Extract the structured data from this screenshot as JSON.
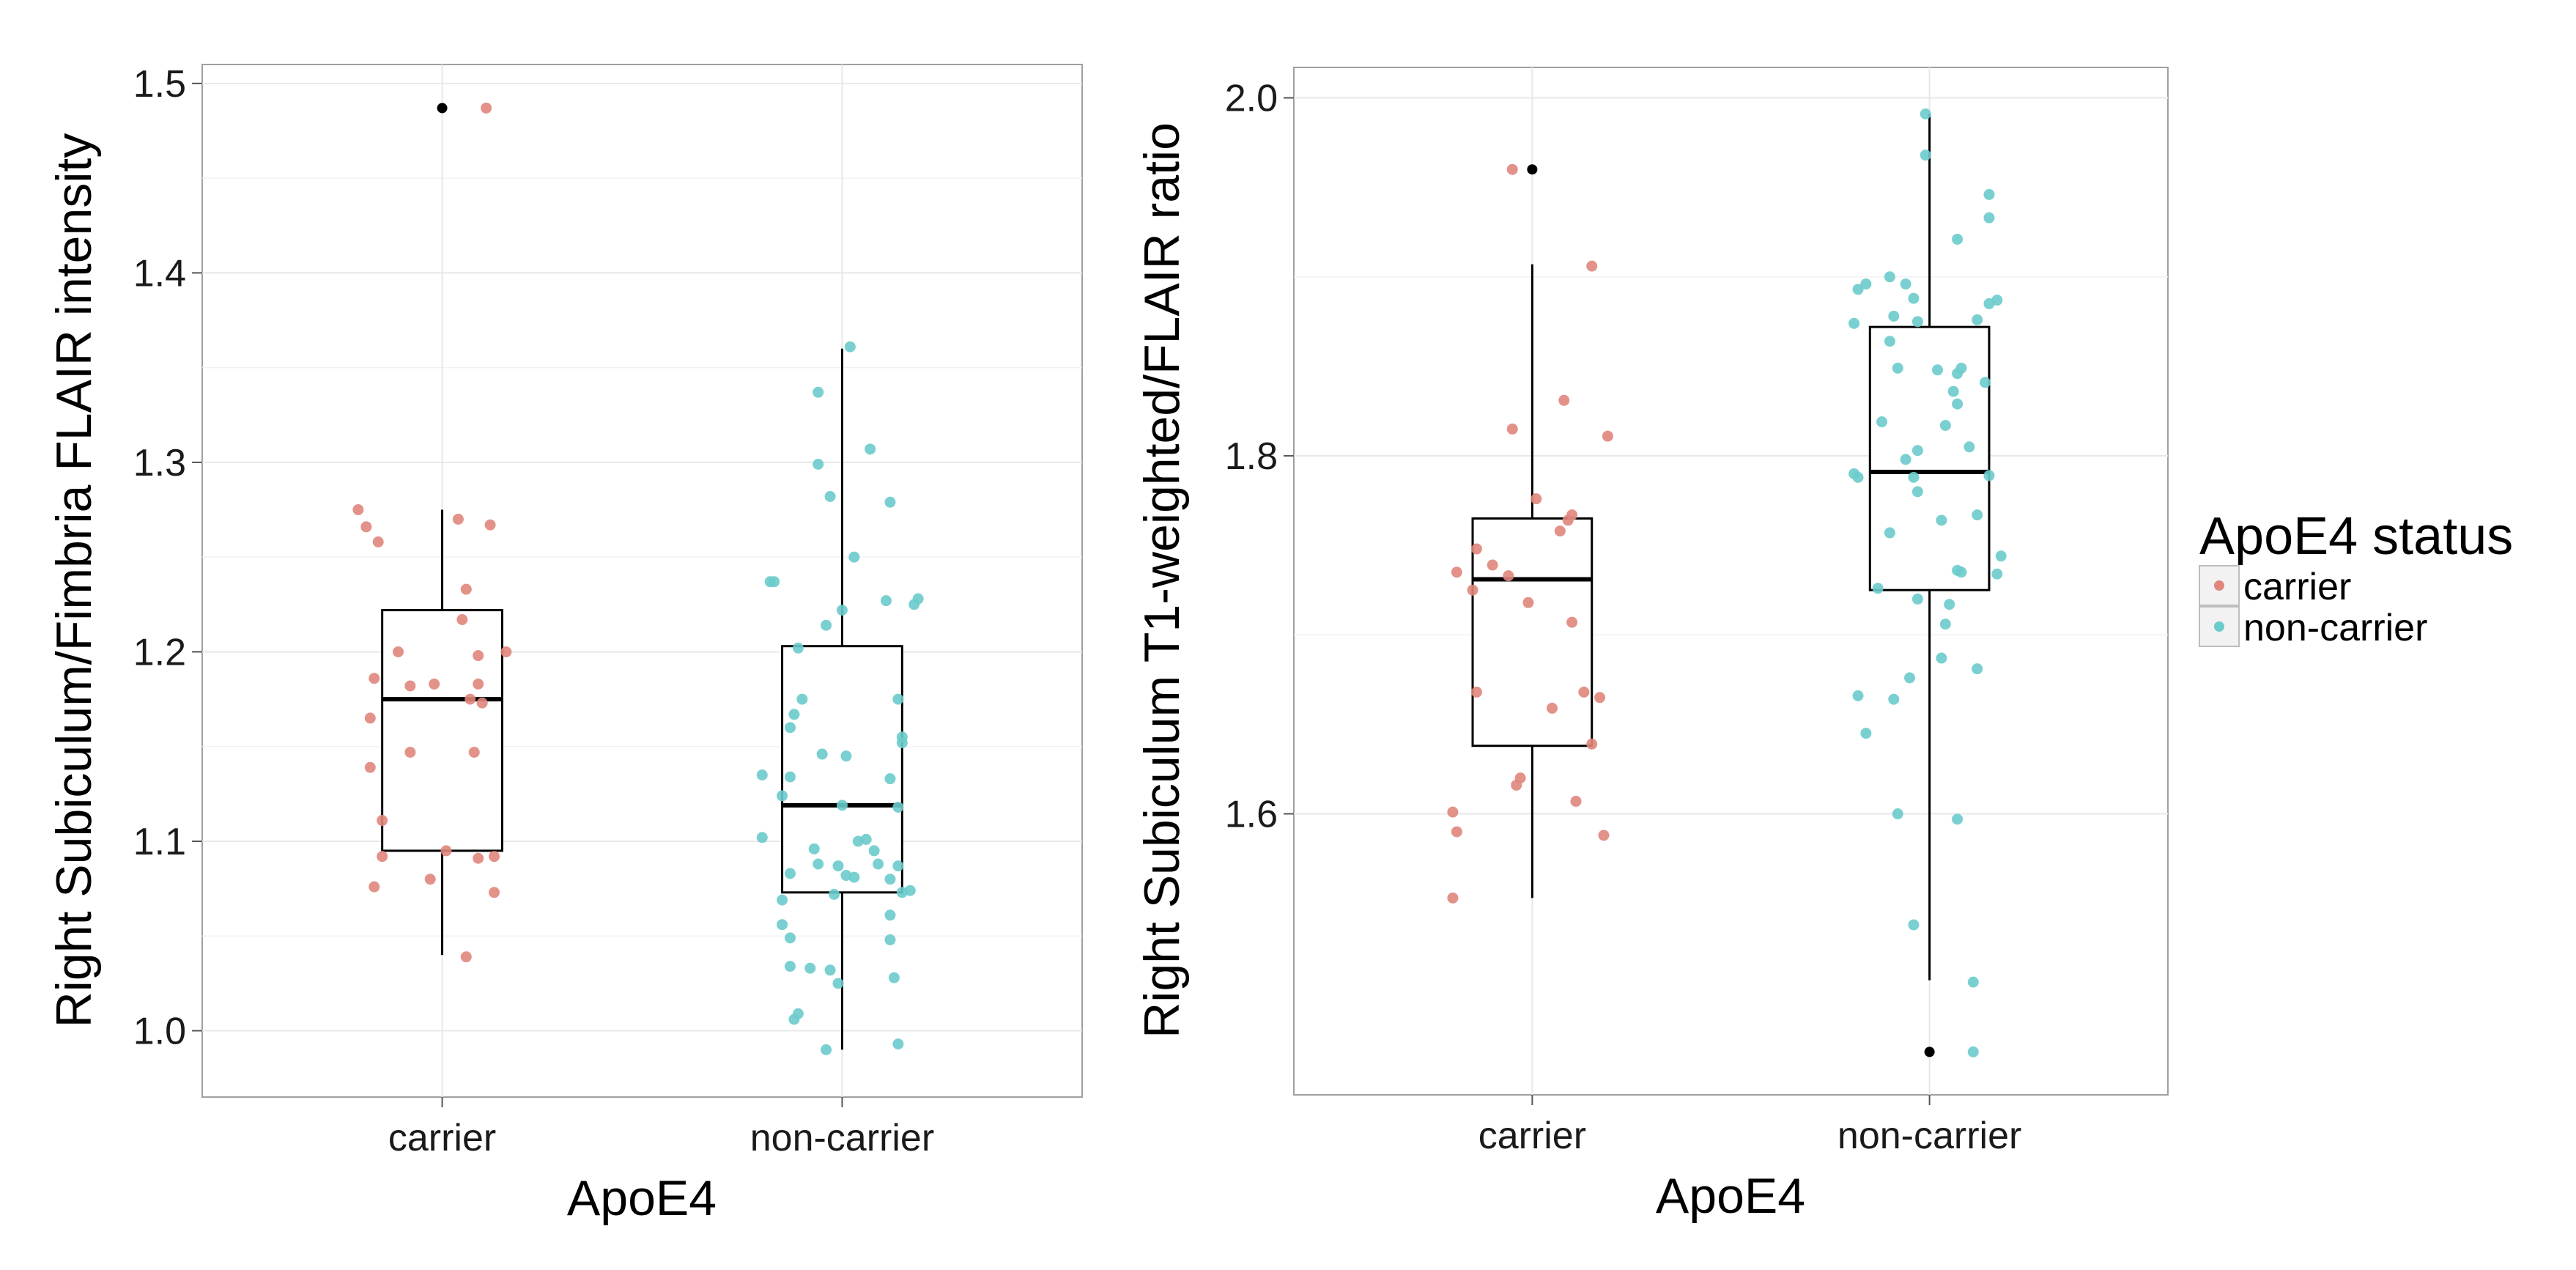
{
  "legend": {
    "title": "ApoE4 status",
    "items": [
      {
        "label": "carrier",
        "color": "#E0867C"
      },
      {
        "label": "non-carrier",
        "color": "#6CCBCB"
      }
    ]
  },
  "chart_data": [
    {
      "type": "box",
      "xlabel": "ApoE4",
      "ylabel": "Right Subiculum/Fimbria FLAIR intensity",
      "ylim": [
        0.965,
        1.51
      ],
      "yticks": [
        1.0,
        1.1,
        1.2,
        1.3,
        1.4,
        1.5
      ],
      "ytick_labels": [
        "1.0",
        "1.1",
        "1.2",
        "1.3",
        "1.4",
        "1.5"
      ],
      "categories": [
        "carrier",
        "non-carrier"
      ],
      "boxes": [
        {
          "category": "carrier",
          "whisker_low": 1.04,
          "q1": 1.095,
          "median": 1.175,
          "q3": 1.222,
          "whisker_high": 1.275,
          "outliers": [
            1.487
          ]
        },
        {
          "category": "non-carrier",
          "whisker_low": 0.99,
          "q1": 1.073,
          "median": 1.119,
          "q3": 1.203,
          "whisker_high": 1.36,
          "outliers": []
        }
      ],
      "points": [
        {
          "group": "carrier",
          "dx": -0.21,
          "y": 1.275
        },
        {
          "group": "carrier",
          "dx": -0.19,
          "y": 1.266
        },
        {
          "group": "carrier",
          "dx": -0.16,
          "y": 1.258
        },
        {
          "group": "carrier",
          "dx": 0.04,
          "y": 1.27
        },
        {
          "group": "carrier",
          "dx": 0.12,
          "y": 1.267
        },
        {
          "group": "carrier",
          "dx": 0.06,
          "y": 1.233
        },
        {
          "group": "carrier",
          "dx": 0.05,
          "y": 1.217
        },
        {
          "group": "carrier",
          "dx": -0.11,
          "y": 1.2
        },
        {
          "group": "carrier",
          "dx": 0.09,
          "y": 1.198
        },
        {
          "group": "carrier",
          "dx": 0.16,
          "y": 1.2
        },
        {
          "group": "carrier",
          "dx": -0.17,
          "y": 1.186
        },
        {
          "group": "carrier",
          "dx": -0.08,
          "y": 1.182
        },
        {
          "group": "carrier",
          "dx": -0.02,
          "y": 1.183
        },
        {
          "group": "carrier",
          "dx": 0.09,
          "y": 1.183
        },
        {
          "group": "carrier",
          "dx": 0.07,
          "y": 1.175
        },
        {
          "group": "carrier",
          "dx": 0.1,
          "y": 1.173
        },
        {
          "group": "carrier",
          "dx": -0.18,
          "y": 1.165
        },
        {
          "group": "carrier",
          "dx": -0.08,
          "y": 1.147
        },
        {
          "group": "carrier",
          "dx": 0.08,
          "y": 1.147
        },
        {
          "group": "carrier",
          "dx": -0.18,
          "y": 1.139
        },
        {
          "group": "carrier",
          "dx": -0.15,
          "y": 1.111
        },
        {
          "group": "carrier",
          "dx": -0.15,
          "y": 1.092
        },
        {
          "group": "carrier",
          "dx": 0.01,
          "y": 1.095
        },
        {
          "group": "carrier",
          "dx": 0.09,
          "y": 1.091
        },
        {
          "group": "carrier",
          "dx": 0.13,
          "y": 1.092
        },
        {
          "group": "carrier",
          "dx": -0.03,
          "y": 1.08
        },
        {
          "group": "carrier",
          "dx": -0.17,
          "y": 1.076
        },
        {
          "group": "carrier",
          "dx": 0.13,
          "y": 1.073
        },
        {
          "group": "carrier",
          "dx": 0.06,
          "y": 1.039
        },
        {
          "group": "carrier",
          "dx": 0.11,
          "y": 1.487
        },
        {
          "group": "non-carrier",
          "dx": 0.02,
          "y": 1.361
        },
        {
          "group": "non-carrier",
          "dx": -0.06,
          "y": 1.337
        },
        {
          "group": "non-carrier",
          "dx": 0.07,
          "y": 1.307
        },
        {
          "group": "non-carrier",
          "dx": -0.06,
          "y": 1.299
        },
        {
          "group": "non-carrier",
          "dx": -0.03,
          "y": 1.282
        },
        {
          "group": "non-carrier",
          "dx": 0.12,
          "y": 1.279
        },
        {
          "group": "non-carrier",
          "dx": 0.03,
          "y": 1.25
        },
        {
          "group": "non-carrier",
          "dx": -0.18,
          "y": 1.237
        },
        {
          "group": "non-carrier",
          "dx": -0.17,
          "y": 1.237
        },
        {
          "group": "non-carrier",
          "dx": 0.11,
          "y": 1.227
        },
        {
          "group": "non-carrier",
          "dx": 0.19,
          "y": 1.228
        },
        {
          "group": "non-carrier",
          "dx": 0.18,
          "y": 1.225
        },
        {
          "group": "non-carrier",
          "dx": 0.0,
          "y": 1.222
        },
        {
          "group": "non-carrier",
          "dx": -0.04,
          "y": 1.214
        },
        {
          "group": "non-carrier",
          "dx": -0.11,
          "y": 1.202
        },
        {
          "group": "non-carrier",
          "dx": -0.1,
          "y": 1.175
        },
        {
          "group": "non-carrier",
          "dx": -0.12,
          "y": 1.167
        },
        {
          "group": "non-carrier",
          "dx": 0.14,
          "y": 1.175
        },
        {
          "group": "non-carrier",
          "dx": -0.13,
          "y": 1.16
        },
        {
          "group": "non-carrier",
          "dx": 0.15,
          "y": 1.155
        },
        {
          "group": "non-carrier",
          "dx": 0.15,
          "y": 1.152
        },
        {
          "group": "non-carrier",
          "dx": -0.05,
          "y": 1.146
        },
        {
          "group": "non-carrier",
          "dx": 0.01,
          "y": 1.145
        },
        {
          "group": "non-carrier",
          "dx": -0.2,
          "y": 1.135
        },
        {
          "group": "non-carrier",
          "dx": -0.13,
          "y": 1.134
        },
        {
          "group": "non-carrier",
          "dx": 0.12,
          "y": 1.133
        },
        {
          "group": "non-carrier",
          "dx": -0.15,
          "y": 1.124
        },
        {
          "group": "non-carrier",
          "dx": 0.0,
          "y": 1.119
        },
        {
          "group": "non-carrier",
          "dx": 0.14,
          "y": 1.118
        },
        {
          "group": "non-carrier",
          "dx": -0.2,
          "y": 1.102
        },
        {
          "group": "non-carrier",
          "dx": 0.06,
          "y": 1.101
        },
        {
          "group": "non-carrier",
          "dx": 0.04,
          "y": 1.1
        },
        {
          "group": "non-carrier",
          "dx": -0.07,
          "y": 1.096
        },
        {
          "group": "non-carrier",
          "dx": 0.08,
          "y": 1.095
        },
        {
          "group": "non-carrier",
          "dx": -0.06,
          "y": 1.088
        },
        {
          "group": "non-carrier",
          "dx": -0.01,
          "y": 1.087
        },
        {
          "group": "non-carrier",
          "dx": 0.09,
          "y": 1.088
        },
        {
          "group": "non-carrier",
          "dx": 0.14,
          "y": 1.087
        },
        {
          "group": "non-carrier",
          "dx": -0.13,
          "y": 1.083
        },
        {
          "group": "non-carrier",
          "dx": 0.01,
          "y": 1.082
        },
        {
          "group": "non-carrier",
          "dx": 0.03,
          "y": 1.081
        },
        {
          "group": "non-carrier",
          "dx": 0.12,
          "y": 1.08
        },
        {
          "group": "non-carrier",
          "dx": 0.17,
          "y": 1.074
        },
        {
          "group": "non-carrier",
          "dx": 0.15,
          "y": 1.073
        },
        {
          "group": "non-carrier",
          "dx": -0.02,
          "y": 1.072
        },
        {
          "group": "non-carrier",
          "dx": -0.15,
          "y": 1.069
        },
        {
          "group": "non-carrier",
          "dx": 0.12,
          "y": 1.061
        },
        {
          "group": "non-carrier",
          "dx": -0.15,
          "y": 1.056
        },
        {
          "group": "non-carrier",
          "dx": -0.13,
          "y": 1.049
        },
        {
          "group": "non-carrier",
          "dx": 0.12,
          "y": 1.048
        },
        {
          "group": "non-carrier",
          "dx": -0.13,
          "y": 1.034
        },
        {
          "group": "non-carrier",
          "dx": -0.08,
          "y": 1.033
        },
        {
          "group": "non-carrier",
          "dx": -0.03,
          "y": 1.032
        },
        {
          "group": "non-carrier",
          "dx": 0.13,
          "y": 1.028
        },
        {
          "group": "non-carrier",
          "dx": -0.01,
          "y": 1.025
        },
        {
          "group": "non-carrier",
          "dx": -0.11,
          "y": 1.009
        },
        {
          "group": "non-carrier",
          "dx": -0.12,
          "y": 1.006
        },
        {
          "group": "non-carrier",
          "dx": 0.14,
          "y": 0.993
        },
        {
          "group": "non-carrier",
          "dx": -0.04,
          "y": 0.99
        }
      ]
    },
    {
      "type": "box",
      "xlabel": "ApoE4",
      "ylabel": "Right Subiculum T1-weighted/FLAIR ratio",
      "ylim": [
        1.443,
        2.017
      ],
      "yticks": [
        1.6,
        1.8,
        2.0
      ],
      "ytick_labels": [
        "1.6",
        "1.8",
        "2.0"
      ],
      "categories": [
        "carrier",
        "non-carrier"
      ],
      "boxes": [
        {
          "category": "carrier",
          "whisker_low": 1.553,
          "q1": 1.638,
          "median": 1.731,
          "q3": 1.765,
          "whisker_high": 1.907,
          "outliers": [
            1.96
          ]
        },
        {
          "category": "non-carrier",
          "whisker_low": 1.507,
          "q1": 1.725,
          "median": 1.791,
          "q3": 1.872,
          "whisker_high": 1.991,
          "outliers": [
            1.467
          ]
        }
      ],
      "points": [
        {
          "group": "carrier",
          "dx": -0.05,
          "y": 1.96
        },
        {
          "group": "carrier",
          "dx": 0.15,
          "y": 1.906
        },
        {
          "group": "carrier",
          "dx": 0.08,
          "y": 1.831
        },
        {
          "group": "carrier",
          "dx": -0.05,
          "y": 1.815
        },
        {
          "group": "carrier",
          "dx": 0.19,
          "y": 1.811
        },
        {
          "group": "carrier",
          "dx": 0.01,
          "y": 1.776
        },
        {
          "group": "carrier",
          "dx": 0.1,
          "y": 1.767
        },
        {
          "group": "carrier",
          "dx": 0.09,
          "y": 1.764
        },
        {
          "group": "carrier",
          "dx": 0.07,
          "y": 1.758
        },
        {
          "group": "carrier",
          "dx": -0.14,
          "y": 1.748
        },
        {
          "group": "carrier",
          "dx": -0.19,
          "y": 1.735
        },
        {
          "group": "carrier",
          "dx": -0.1,
          "y": 1.739
        },
        {
          "group": "carrier",
          "dx": -0.06,
          "y": 1.733
        },
        {
          "group": "carrier",
          "dx": -0.15,
          "y": 1.725
        },
        {
          "group": "carrier",
          "dx": -0.01,
          "y": 1.718
        },
        {
          "group": "carrier",
          "dx": 0.1,
          "y": 1.707
        },
        {
          "group": "carrier",
          "dx": -0.14,
          "y": 1.668
        },
        {
          "group": "carrier",
          "dx": 0.13,
          "y": 1.668
        },
        {
          "group": "carrier",
          "dx": 0.17,
          "y": 1.665
        },
        {
          "group": "carrier",
          "dx": 0.05,
          "y": 1.659
        },
        {
          "group": "carrier",
          "dx": 0.15,
          "y": 1.639
        },
        {
          "group": "carrier",
          "dx": -0.03,
          "y": 1.62
        },
        {
          "group": "carrier",
          "dx": -0.04,
          "y": 1.616
        },
        {
          "group": "carrier",
          "dx": 0.11,
          "y": 1.607
        },
        {
          "group": "carrier",
          "dx": -0.2,
          "y": 1.601
        },
        {
          "group": "carrier",
          "dx": -0.19,
          "y": 1.59
        },
        {
          "group": "carrier",
          "dx": 0.18,
          "y": 1.588
        },
        {
          "group": "carrier",
          "dx": -0.2,
          "y": 1.553
        },
        {
          "group": "non-carrier",
          "dx": -0.01,
          "y": 1.991
        },
        {
          "group": "non-carrier",
          "dx": -0.01,
          "y": 1.968
        },
        {
          "group": "non-carrier",
          "dx": 0.15,
          "y": 1.946
        },
        {
          "group": "non-carrier",
          "dx": 0.15,
          "y": 1.933
        },
        {
          "group": "non-carrier",
          "dx": 0.07,
          "y": 1.921
        },
        {
          "group": "non-carrier",
          "dx": -0.1,
          "y": 1.9
        },
        {
          "group": "non-carrier",
          "dx": -0.06,
          "y": 1.896
        },
        {
          "group": "non-carrier",
          "dx": -0.18,
          "y": 1.893
        },
        {
          "group": "non-carrier",
          "dx": -0.16,
          "y": 1.896
        },
        {
          "group": "non-carrier",
          "dx": -0.04,
          "y": 1.888
        },
        {
          "group": "non-carrier",
          "dx": 0.17,
          "y": 1.887
        },
        {
          "group": "non-carrier",
          "dx": 0.15,
          "y": 1.885
        },
        {
          "group": "non-carrier",
          "dx": -0.09,
          "y": 1.878
        },
        {
          "group": "non-carrier",
          "dx": -0.03,
          "y": 1.875
        },
        {
          "group": "non-carrier",
          "dx": 0.12,
          "y": 1.876
        },
        {
          "group": "non-carrier",
          "dx": -0.19,
          "y": 1.874
        },
        {
          "group": "non-carrier",
          "dx": -0.1,
          "y": 1.864
        },
        {
          "group": "non-carrier",
          "dx": -0.08,
          "y": 1.849
        },
        {
          "group": "non-carrier",
          "dx": 0.02,
          "y": 1.848
        },
        {
          "group": "non-carrier",
          "dx": 0.07,
          "y": 1.846
        },
        {
          "group": "non-carrier",
          "dx": 0.08,
          "y": 1.849
        },
        {
          "group": "non-carrier",
          "dx": 0.14,
          "y": 1.841
        },
        {
          "group": "non-carrier",
          "dx": 0.06,
          "y": 1.836
        },
        {
          "group": "non-carrier",
          "dx": 0.07,
          "y": 1.829
        },
        {
          "group": "non-carrier",
          "dx": -0.12,
          "y": 1.819
        },
        {
          "group": "non-carrier",
          "dx": 0.04,
          "y": 1.817
        },
        {
          "group": "non-carrier",
          "dx": 0.1,
          "y": 1.805
        },
        {
          "group": "non-carrier",
          "dx": -0.03,
          "y": 1.803
        },
        {
          "group": "non-carrier",
          "dx": -0.06,
          "y": 1.798
        },
        {
          "group": "non-carrier",
          "dx": -0.19,
          "y": 1.79
        },
        {
          "group": "non-carrier",
          "dx": -0.18,
          "y": 1.788
        },
        {
          "group": "non-carrier",
          "dx": 0.15,
          "y": 1.789
        },
        {
          "group": "non-carrier",
          "dx": -0.04,
          "y": 1.788
        },
        {
          "group": "non-carrier",
          "dx": -0.03,
          "y": 1.78
        },
        {
          "group": "non-carrier",
          "dx": 0.12,
          "y": 1.767
        },
        {
          "group": "non-carrier",
          "dx": 0.03,
          "y": 1.764
        },
        {
          "group": "non-carrier",
          "dx": -0.1,
          "y": 1.757
        },
        {
          "group": "non-carrier",
          "dx": 0.07,
          "y": 1.736
        },
        {
          "group": "non-carrier",
          "dx": 0.08,
          "y": 1.735
        },
        {
          "group": "non-carrier",
          "dx": 0.18,
          "y": 1.744
        },
        {
          "group": "non-carrier",
          "dx": 0.17,
          "y": 1.734
        },
        {
          "group": "non-carrier",
          "dx": -0.13,
          "y": 1.726
        },
        {
          "group": "non-carrier",
          "dx": -0.03,
          "y": 1.72
        },
        {
          "group": "non-carrier",
          "dx": 0.05,
          "y": 1.717
        },
        {
          "group": "non-carrier",
          "dx": 0.04,
          "y": 1.706
        },
        {
          "group": "non-carrier",
          "dx": 0.03,
          "y": 1.687
        },
        {
          "group": "non-carrier",
          "dx": 0.12,
          "y": 1.681
        },
        {
          "group": "non-carrier",
          "dx": -0.05,
          "y": 1.676
        },
        {
          "group": "non-carrier",
          "dx": -0.18,
          "y": 1.666
        },
        {
          "group": "non-carrier",
          "dx": -0.09,
          "y": 1.664
        },
        {
          "group": "non-carrier",
          "dx": -0.16,
          "y": 1.645
        },
        {
          "group": "non-carrier",
          "dx": -0.08,
          "y": 1.6
        },
        {
          "group": "non-carrier",
          "dx": 0.07,
          "y": 1.597
        },
        {
          "group": "non-carrier",
          "dx": -0.04,
          "y": 1.538
        },
        {
          "group": "non-carrier",
          "dx": 0.11,
          "y": 1.506
        },
        {
          "group": "non-carrier",
          "dx": 0.11,
          "y": 1.467
        }
      ]
    }
  ]
}
